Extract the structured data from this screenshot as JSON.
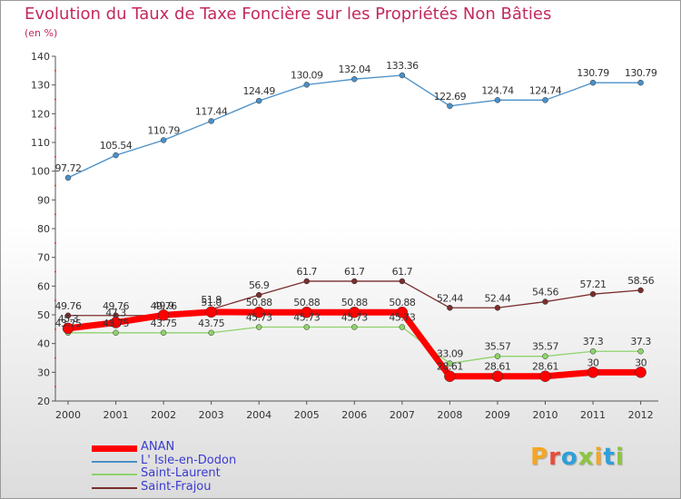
{
  "header": {
    "title": "Evolution du Taux de Taxe Foncière sur les Propriétés Non Bâties",
    "unit": "(en %)"
  },
  "brand": {
    "text": "Proxiti",
    "colors": [
      "#f5a623",
      "#e84c3d",
      "#2d9fd9",
      "#8dc63f",
      "#f5a623",
      "#2d9fd9",
      "#8dc63f"
    ]
  },
  "chart_data": {
    "type": "line",
    "title": "Evolution du Taux de Taxe Foncière sur les Propriétés Non Bâties",
    "ylabel": "(en %)",
    "xlabel": "",
    "x": [
      "2000",
      "2001",
      "2002",
      "2003",
      "2004",
      "2005",
      "2006",
      "2007",
      "2008",
      "2009",
      "2010",
      "2011",
      "2012"
    ],
    "yticks": [
      20,
      30,
      40,
      50,
      60,
      70,
      80,
      90,
      100,
      110,
      120,
      130,
      140
    ],
    "ylim": [
      20,
      140
    ],
    "grid": false,
    "legend": "bottom-left",
    "series": [
      {
        "name": "ANAN",
        "color": "#ff0000",
        "values": [
          45.3,
          47.3,
          49.9,
          51.0,
          50.88,
          50.88,
          50.88,
          50.88,
          28.61,
          28.61,
          28.61,
          30,
          30
        ],
        "labels": [
          "45.3",
          "47.3",
          "49.9",
          "51.0",
          "50.88",
          "50.88",
          "50.88",
          "50.88",
          "28.61",
          "28.61",
          "28.61",
          "30",
          "30"
        ]
      },
      {
        "name": "L' Isle-en-Dodon",
        "color": "#4a90c8",
        "values": [
          97.72,
          105.54,
          110.79,
          117.44,
          124.49,
          130.09,
          132.04,
          133.36,
          122.69,
          124.74,
          124.74,
          130.79,
          130.79
        ],
        "labels": [
          "97.72",
          "105.54",
          "110.79",
          "117.44",
          "124.49",
          "130.09",
          "132.04",
          "133.36",
          "122.69",
          "124.74",
          "124.74",
          "130.79",
          "130.79"
        ]
      },
      {
        "name": "Saint-Laurent",
        "color": "#8ed36b",
        "values": [
          43.75,
          43.75,
          43.75,
          43.75,
          45.73,
          45.73,
          45.73,
          45.73,
          33.09,
          35.57,
          35.57,
          37.3,
          37.3
        ],
        "labels": [
          "43.75",
          "43.75",
          "43.75",
          "43.75",
          "45.73",
          "45.73",
          "45.73",
          "45.73",
          "33.09",
          "35.57",
          "35.57",
          "37.3",
          "37.3"
        ]
      },
      {
        "name": "Saint-Frajou",
        "color": "#7a2d2d",
        "values": [
          49.76,
          49.76,
          49.76,
          51.9,
          56.9,
          61.7,
          61.7,
          61.7,
          52.44,
          52.44,
          54.56,
          57.21,
          58.56
        ],
        "labels": [
          "49.76",
          "49.76",
          "49.76",
          "51.9",
          "56.9",
          "61.7",
          "61.7",
          "61.7",
          "52.44",
          "52.44",
          "54.56",
          "57.21",
          "58.56"
        ]
      }
    ]
  }
}
